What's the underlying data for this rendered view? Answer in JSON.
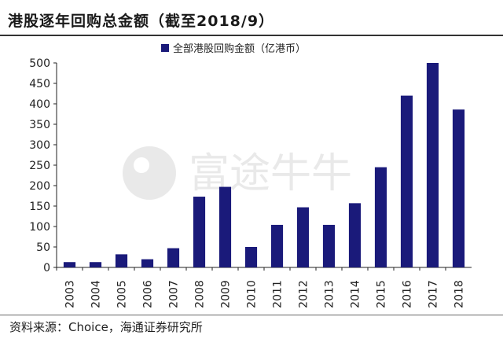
{
  "title": "港股逐年回购总金额（截至2018/9）",
  "source": "资料来源：Choice，海通证券研究所",
  "watermark_text": "富途牛牛",
  "chart_data": {
    "type": "bar",
    "title": "港股逐年回购总金额（截至2018/9）",
    "categories": [
      "2003",
      "2004",
      "2005",
      "2006",
      "2007",
      "2008",
      "2009",
      "2010",
      "2011",
      "2012",
      "2013",
      "2014",
      "2015",
      "2016",
      "2017",
      "2018"
    ],
    "series": [
      {
        "name": "全部港股回购金额（亿港币）",
        "values": [
          13,
          13,
          32,
          20,
          47,
          173,
          197,
          50,
          104,
          147,
          104,
          157,
          245,
          420,
          500,
          386
        ]
      }
    ],
    "yticks": [
      "0",
      "50",
      "100",
      "150",
      "200",
      "250",
      "300",
      "350",
      "400",
      "450",
      "500"
    ],
    "ylim": [
      0,
      500
    ],
    "grid": false,
    "legend": "top-center",
    "colors": {
      "bar": "#1a1a7a",
      "axis": "#222222"
    }
  }
}
